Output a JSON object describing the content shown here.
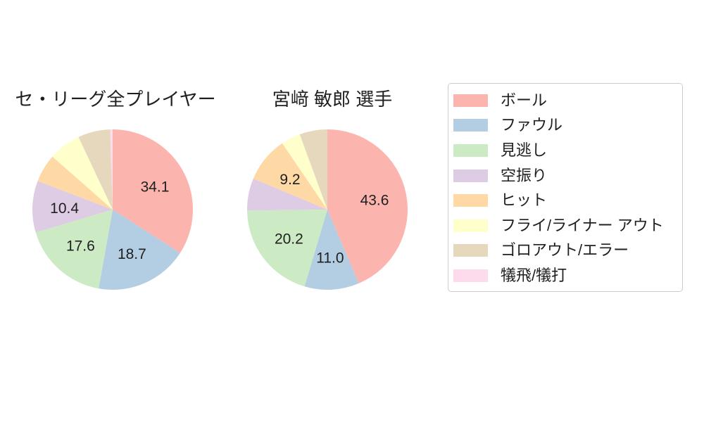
{
  "accent_colors": {
    "text": "#1f1f1f",
    "legend_border": "#cccccc",
    "background": "#ffffff"
  },
  "legend": {
    "items": [
      {
        "label": "ボール",
        "color": "#fbb4ae"
      },
      {
        "label": "ファウル",
        "color": "#b3cde3"
      },
      {
        "label": "見逃し",
        "color": "#ccebc5"
      },
      {
        "label": "空振り",
        "color": "#decbe4"
      },
      {
        "label": "ヒット",
        "color": "#fed9a6"
      },
      {
        "label": "フライ/ライナー アウト",
        "color": "#ffffcc"
      },
      {
        "label": "ゴロアウト/エラー",
        "color": "#e5d8bd"
      },
      {
        "label": "犠飛/犠打",
        "color": "#fddaec"
      }
    ]
  },
  "chart_data": [
    {
      "type": "pie",
      "title": "セ・リーグ全プレイヤー",
      "categories": [
        "ボール",
        "ファウル",
        "見逃し",
        "空振り",
        "ヒット",
        "フライ/ライナー アウト",
        "ゴロアウト/エラー",
        "犠飛/犠打"
      ],
      "values": [
        34.1,
        18.7,
        17.6,
        10.4,
        5.7,
        6.5,
        6.5,
        0.5
      ],
      "labels_shown": [
        true,
        true,
        true,
        true,
        false,
        false,
        false,
        false
      ],
      "shown_value_labels": [
        "34.1",
        "18.7",
        "17.6",
        "10.4"
      ],
      "colors": [
        "#fbb4ae",
        "#b3cde3",
        "#ccebc5",
        "#decbe4",
        "#fed9a6",
        "#ffffcc",
        "#e5d8bd",
        "#fddaec"
      ],
      "start_angle": "top",
      "direction": "clockwise",
      "label_radius_frac": 0.6
    },
    {
      "type": "pie",
      "title": "宮﨑 敏郎 選手",
      "categories": [
        "ボール",
        "ファウル",
        "見逃し",
        "空振り",
        "ヒット",
        "フライ/ライナー アウト",
        "ゴロアウト/エラー",
        "犠飛/犠打"
      ],
      "values": [
        43.6,
        11.0,
        20.2,
        6.5,
        9.2,
        3.9,
        5.6,
        0.0
      ],
      "labels_shown": [
        true,
        true,
        true,
        false,
        true,
        false,
        false,
        false
      ],
      "shown_value_labels": [
        "43.6",
        "11.0",
        "20.2",
        "9.2"
      ],
      "colors": [
        "#fbb4ae",
        "#b3cde3",
        "#ccebc5",
        "#decbe4",
        "#fed9a6",
        "#ffffcc",
        "#e5d8bd",
        "#fddaec"
      ],
      "start_angle": "top",
      "direction": "clockwise",
      "label_radius_frac": 0.6
    }
  ]
}
